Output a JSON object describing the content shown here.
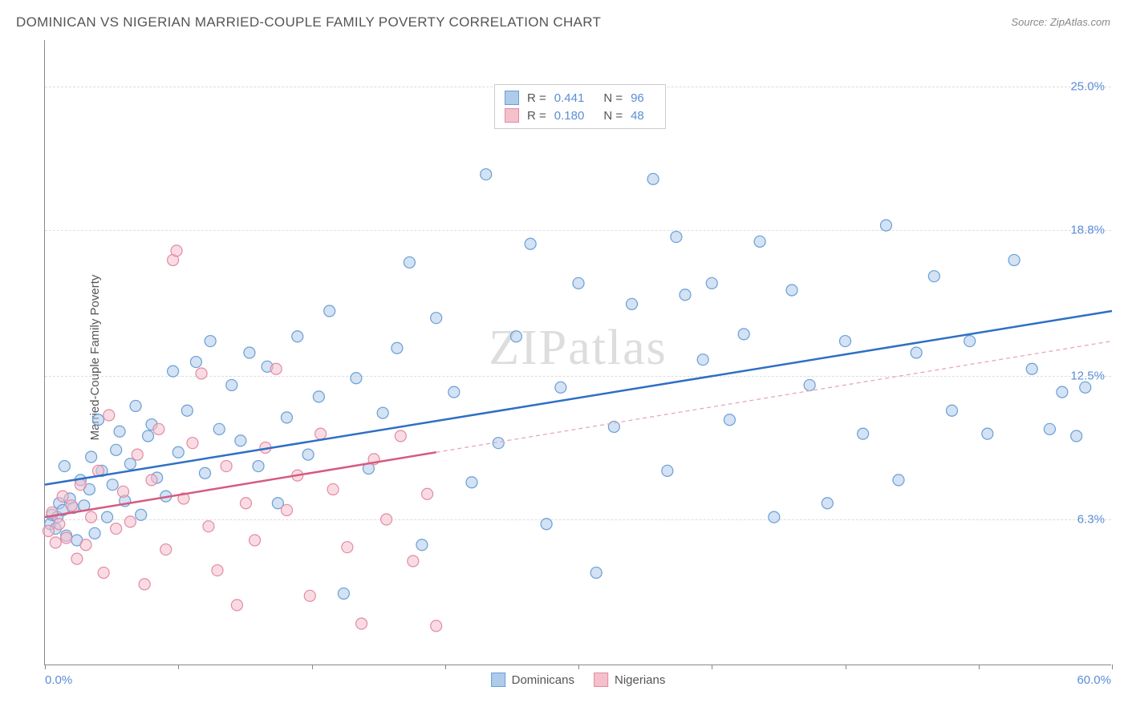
{
  "title": "DOMINICAN VS NIGERIAN MARRIED-COUPLE FAMILY POVERTY CORRELATION CHART",
  "source": "Source: ZipAtlas.com",
  "y_axis_title": "Married-Couple Family Poverty",
  "watermark": "ZIPatlas",
  "chart": {
    "type": "scatter",
    "xlim": [
      0,
      60
    ],
    "ylim": [
      0,
      27
    ],
    "x_min_label": "0.0%",
    "x_max_label": "60.0%",
    "x_tick_positions": [
      0,
      7.5,
      15,
      22.5,
      30,
      37.5,
      45,
      52.5,
      60
    ],
    "y_gridlines": [
      {
        "value": 6.3,
        "label": "6.3%"
      },
      {
        "value": 12.5,
        "label": "12.5%"
      },
      {
        "value": 18.8,
        "label": "18.8%"
      },
      {
        "value": 25.0,
        "label": "25.0%"
      }
    ],
    "background_color": "#ffffff",
    "grid_color": "#dddddd",
    "axis_color": "#888888",
    "label_color": "#5b8dd6",
    "marker_radius": 7,
    "marker_stroke_width": 1.2,
    "trend_line_width": 2.5,
    "series": [
      {
        "name": "Dominicans",
        "fill": "#aecbeb",
        "stroke": "#6a9fd4",
        "fill_opacity": 0.55,
        "legend_swatch_fill": "#aecbeb",
        "legend_swatch_stroke": "#6a9fd4",
        "stats": {
          "R": "0.441",
          "N": "96"
        },
        "trend": {
          "x1": 0,
          "y1": 7.8,
          "x2": 60,
          "y2": 15.3,
          "color": "#2f6fc4",
          "dash": "none"
        },
        "points": [
          [
            0.3,
            6.1
          ],
          [
            0.4,
            6.5
          ],
          [
            0.6,
            5.9
          ],
          [
            0.7,
            6.4
          ],
          [
            0.8,
            7.0
          ],
          [
            1.0,
            6.7
          ],
          [
            1.1,
            8.6
          ],
          [
            1.2,
            5.6
          ],
          [
            1.4,
            7.2
          ],
          [
            1.6,
            6.8
          ],
          [
            1.8,
            5.4
          ],
          [
            2.0,
            8.0
          ],
          [
            2.2,
            6.9
          ],
          [
            2.5,
            7.6
          ],
          [
            2.6,
            9.0
          ],
          [
            2.8,
            5.7
          ],
          [
            3.0,
            10.6
          ],
          [
            3.2,
            8.4
          ],
          [
            3.5,
            6.4
          ],
          [
            3.8,
            7.8
          ],
          [
            4.0,
            9.3
          ],
          [
            4.2,
            10.1
          ],
          [
            4.5,
            7.1
          ],
          [
            4.8,
            8.7
          ],
          [
            5.1,
            11.2
          ],
          [
            5.4,
            6.5
          ],
          [
            5.8,
            9.9
          ],
          [
            6.0,
            10.4
          ],
          [
            6.3,
            8.1
          ],
          [
            6.8,
            7.3
          ],
          [
            7.2,
            12.7
          ],
          [
            7.5,
            9.2
          ],
          [
            8.0,
            11.0
          ],
          [
            8.5,
            13.1
          ],
          [
            9.0,
            8.3
          ],
          [
            9.3,
            14.0
          ],
          [
            9.8,
            10.2
          ],
          [
            10.5,
            12.1
          ],
          [
            11.0,
            9.7
          ],
          [
            11.5,
            13.5
          ],
          [
            12.0,
            8.6
          ],
          [
            12.5,
            12.9
          ],
          [
            13.1,
            7.0
          ],
          [
            13.6,
            10.7
          ],
          [
            14.2,
            14.2
          ],
          [
            14.8,
            9.1
          ],
          [
            15.4,
            11.6
          ],
          [
            16.0,
            15.3
          ],
          [
            16.8,
            3.1
          ],
          [
            17.5,
            12.4
          ],
          [
            18.2,
            8.5
          ],
          [
            19.0,
            10.9
          ],
          [
            19.8,
            13.7
          ],
          [
            20.5,
            17.4
          ],
          [
            21.2,
            5.2
          ],
          [
            22.0,
            15.0
          ],
          [
            23.0,
            11.8
          ],
          [
            24.0,
            7.9
          ],
          [
            24.8,
            21.2
          ],
          [
            25.5,
            9.6
          ],
          [
            26.5,
            14.2
          ],
          [
            27.3,
            18.2
          ],
          [
            28.2,
            6.1
          ],
          [
            29.0,
            12.0
          ],
          [
            30.0,
            16.5
          ],
          [
            31.0,
            4.0
          ],
          [
            32.0,
            10.3
          ],
          [
            33.0,
            15.6
          ],
          [
            34.2,
            21.0
          ],
          [
            35.0,
            8.4
          ],
          [
            35.5,
            18.5
          ],
          [
            36.0,
            16.0
          ],
          [
            37.0,
            13.2
          ],
          [
            37.5,
            16.5
          ],
          [
            38.5,
            10.6
          ],
          [
            39.3,
            14.3
          ],
          [
            40.2,
            18.3
          ],
          [
            41.0,
            6.4
          ],
          [
            42.0,
            16.2
          ],
          [
            43.0,
            12.1
          ],
          [
            44.0,
            7.0
          ],
          [
            45.0,
            14.0
          ],
          [
            46.0,
            10.0
          ],
          [
            47.3,
            19.0
          ],
          [
            48.0,
            8.0
          ],
          [
            49.0,
            13.5
          ],
          [
            50.0,
            16.8
          ],
          [
            51.0,
            11.0
          ],
          [
            52.0,
            14.0
          ],
          [
            53.0,
            10.0
          ],
          [
            54.5,
            17.5
          ],
          [
            55.5,
            12.8
          ],
          [
            56.5,
            10.2
          ],
          [
            57.2,
            11.8
          ],
          [
            58.0,
            9.9
          ],
          [
            58.5,
            12.0
          ]
        ]
      },
      {
        "name": "Nigerians",
        "fill": "#f4c0cc",
        "stroke": "#e48aa3",
        "fill_opacity": 0.55,
        "legend_swatch_fill": "#f4c0cc",
        "legend_swatch_stroke": "#e48aa3",
        "stats": {
          "R": "0.180",
          "N": "48"
        },
        "trend_solid": {
          "x1": 0,
          "y1": 6.4,
          "x2": 22,
          "y2": 9.2,
          "color": "#d65a7f",
          "dash": "none"
        },
        "trend_dashed": {
          "x1": 22,
          "y1": 9.2,
          "x2": 60,
          "y2": 14.0,
          "color": "#e9a7b8",
          "dash": "5,4"
        },
        "points": [
          [
            0.2,
            5.8
          ],
          [
            0.4,
            6.6
          ],
          [
            0.6,
            5.3
          ],
          [
            0.8,
            6.1
          ],
          [
            1.0,
            7.3
          ],
          [
            1.2,
            5.5
          ],
          [
            1.5,
            6.9
          ],
          [
            1.8,
            4.6
          ],
          [
            2.0,
            7.8
          ],
          [
            2.3,
            5.2
          ],
          [
            2.6,
            6.4
          ],
          [
            3.0,
            8.4
          ],
          [
            3.3,
            4.0
          ],
          [
            3.6,
            10.8
          ],
          [
            4.0,
            5.9
          ],
          [
            4.4,
            7.5
          ],
          [
            4.8,
            6.2
          ],
          [
            5.2,
            9.1
          ],
          [
            5.6,
            3.5
          ],
          [
            6.0,
            8.0
          ],
          [
            6.4,
            10.2
          ],
          [
            6.8,
            5.0
          ],
          [
            7.2,
            17.5
          ],
          [
            7.4,
            17.9
          ],
          [
            7.8,
            7.2
          ],
          [
            8.3,
            9.6
          ],
          [
            8.8,
            12.6
          ],
          [
            9.2,
            6.0
          ],
          [
            9.7,
            4.1
          ],
          [
            10.2,
            8.6
          ],
          [
            10.8,
            2.6
          ],
          [
            11.3,
            7.0
          ],
          [
            11.8,
            5.4
          ],
          [
            12.4,
            9.4
          ],
          [
            13.0,
            12.8
          ],
          [
            13.6,
            6.7
          ],
          [
            14.2,
            8.2
          ],
          [
            14.9,
            3.0
          ],
          [
            15.5,
            10.0
          ],
          [
            16.2,
            7.6
          ],
          [
            17.0,
            5.1
          ],
          [
            17.8,
            1.8
          ],
          [
            18.5,
            8.9
          ],
          [
            19.2,
            6.3
          ],
          [
            20.0,
            9.9
          ],
          [
            20.7,
            4.5
          ],
          [
            21.5,
            7.4
          ],
          [
            22.0,
            1.7
          ]
        ]
      }
    ]
  },
  "legend_top_labels": {
    "R": "R =",
    "N": "N ="
  },
  "legend_bottom": [
    {
      "label": "Dominicans",
      "fill": "#aecbeb",
      "stroke": "#6a9fd4"
    },
    {
      "label": "Nigerians",
      "fill": "#f4c0cc",
      "stroke": "#e48aa3"
    }
  ]
}
